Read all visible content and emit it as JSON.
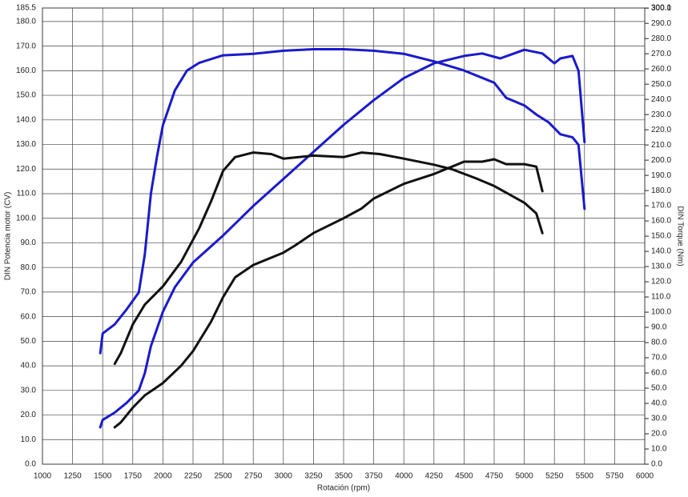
{
  "chart_data": {
    "type": "line",
    "xlabel": "Rotación (rpm)",
    "ylabel": "DIN Potencia motor (CV)",
    "y2label": "DIN Torque (Nm)",
    "xlim": [
      1000,
      6000
    ],
    "xticks": [
      1000,
      1250,
      1500,
      1750,
      2000,
      2250,
      2500,
      2750,
      3000,
      3250,
      3500,
      3750,
      4000,
      4250,
      4500,
      4750,
      5000,
      5250,
      5500,
      5750,
      6000
    ],
    "ylim": [
      0,
      185.5
    ],
    "yticks": [
      {
        "value": 0,
        "label": "0.0"
      },
      {
        "value": 10,
        "label": "10.0"
      },
      {
        "value": 20,
        "label": "20.0"
      },
      {
        "value": 30,
        "label": "30.0"
      },
      {
        "value": 40,
        "label": "40.0"
      },
      {
        "value": 50,
        "label": "50.0"
      },
      {
        "value": 60,
        "label": "60.0"
      },
      {
        "value": 70,
        "label": "70.0"
      },
      {
        "value": 80,
        "label": "80.0"
      },
      {
        "value": 90,
        "label": "90.0"
      },
      {
        "value": 100,
        "label": "100.0"
      },
      {
        "value": 110,
        "label": "110.0"
      },
      {
        "value": 120,
        "label": "120.0"
      },
      {
        "value": 130,
        "label": "130.0"
      },
      {
        "value": 140,
        "label": "140.0"
      },
      {
        "value": 150,
        "label": "150.0"
      },
      {
        "value": 160,
        "label": "160.0"
      },
      {
        "value": 170,
        "label": "170.0"
      },
      {
        "value": 180,
        "label": "180.0"
      },
      {
        "value": 185.5,
        "label": "185.5"
      }
    ],
    "y2lim": [
      0,
      300.1
    ],
    "y2ticks": [
      {
        "value": 0,
        "label": "0.0"
      },
      {
        "value": 10,
        "label": "10.0"
      },
      {
        "value": 20,
        "label": "20.0"
      },
      {
        "value": 30,
        "label": "30.0"
      },
      {
        "value": 40,
        "label": "40.0"
      },
      {
        "value": 50,
        "label": "50.0"
      },
      {
        "value": 60,
        "label": "60.0"
      },
      {
        "value": 70,
        "label": "70.0"
      },
      {
        "value": 80,
        "label": "80.0"
      },
      {
        "value": 90,
        "label": "90.0"
      },
      {
        "value": 100,
        "label": "100.0"
      },
      {
        "value": 110,
        "label": "110.0"
      },
      {
        "value": 120,
        "label": "120.0"
      },
      {
        "value": 130,
        "label": "130.0"
      },
      {
        "value": 140,
        "label": "140.0"
      },
      {
        "value": 150,
        "label": "150.0"
      },
      {
        "value": 160,
        "label": "160.0"
      },
      {
        "value": 170,
        "label": "170.0"
      },
      {
        "value": 180,
        "label": "180.0"
      },
      {
        "value": 190,
        "label": "190.0"
      },
      {
        "value": 200,
        "label": "200.0"
      },
      {
        "value": 210,
        "label": "210.0"
      },
      {
        "value": 220,
        "label": "220.0"
      },
      {
        "value": 230,
        "label": "230.0"
      },
      {
        "value": 240,
        "label": "240.0"
      },
      {
        "value": 250,
        "label": "250.0"
      },
      {
        "value": 260,
        "label": "260.0"
      },
      {
        "value": 270,
        "label": "270.0"
      },
      {
        "value": 280,
        "label": "280.0"
      },
      {
        "value": 290,
        "label": "290.0"
      },
      {
        "value": 300,
        "label": "300.0"
      },
      {
        "value": 300.1,
        "label": "300.1"
      }
    ],
    "grid": true,
    "series": [
      {
        "color": "#1a1acc",
        "axis": "y2",
        "x": [
          1480,
          1500,
          1600,
          1700,
          1800,
          1850,
          1900,
          1950,
          2000,
          2100,
          2200,
          2300,
          2500,
          2750,
          3000,
          3250,
          3500,
          3750,
          4000,
          4250,
          4500,
          4750,
          4850,
          5000,
          5100,
          5200,
          5300,
          5400,
          5450,
          5500
        ],
        "values": [
          73,
          86,
          92,
          102,
          113,
          138,
          178,
          202,
          223,
          246,
          259,
          264,
          269,
          270,
          272,
          273,
          273,
          272,
          270,
          265,
          259,
          251,
          241,
          236,
          230,
          225,
          217,
          215,
          210,
          168
        ]
      },
      {
        "color": "#1a1acc",
        "axis": "y",
        "x": [
          1480,
          1500,
          1600,
          1700,
          1800,
          1850,
          1900,
          2000,
          2100,
          2250,
          2500,
          2750,
          3000,
          3250,
          3500,
          3750,
          4000,
          4250,
          4500,
          4650,
          4800,
          5000,
          5150,
          5250,
          5300,
          5400,
          5450,
          5500
        ],
        "values": [
          15,
          18,
          21,
          25,
          30,
          37,
          48,
          62,
          72,
          82,
          93,
          105,
          116,
          127,
          138,
          148,
          157,
          163,
          166,
          167,
          165,
          168.5,
          167,
          163,
          165,
          166,
          160,
          131
        ]
      },
      {
        "color": "#111111",
        "axis": "y",
        "x": [
          1600,
          1650,
          1750,
          1850,
          2000,
          2150,
          2250,
          2400,
          2500,
          2600,
          2750,
          2900,
          3000,
          3100,
          3250,
          3500,
          3650,
          3750,
          4000,
          4250,
          4400,
          4500,
          4650,
          4750,
          4850,
          5000,
          5100,
          5150
        ],
        "values": [
          15,
          17,
          23,
          28,
          33,
          40,
          46,
          58,
          68,
          76,
          81,
          84,
          86,
          89,
          94,
          100,
          104,
          108,
          114,
          118,
          121,
          123,
          123,
          124,
          122,
          122,
          121,
          111
        ]
      },
      {
        "color": "#111111",
        "axis": "y2",
        "x": [
          1600,
          1650,
          1750,
          1850,
          2000,
          2150,
          2300,
          2400,
          2500,
          2600,
          2750,
          2900,
          3000,
          3250,
          3500,
          3650,
          3800,
          4000,
          4250,
          4400,
          4600,
          4750,
          5000,
          5100,
          5150
        ],
        "values": [
          66,
          73,
          92,
          105,
          117,
          133,
          155,
          173,
          193,
          202,
          205,
          204,
          201,
          203,
          202,
          205,
          204,
          201,
          197,
          194,
          188,
          183,
          172,
          165,
          152
        ]
      }
    ]
  }
}
